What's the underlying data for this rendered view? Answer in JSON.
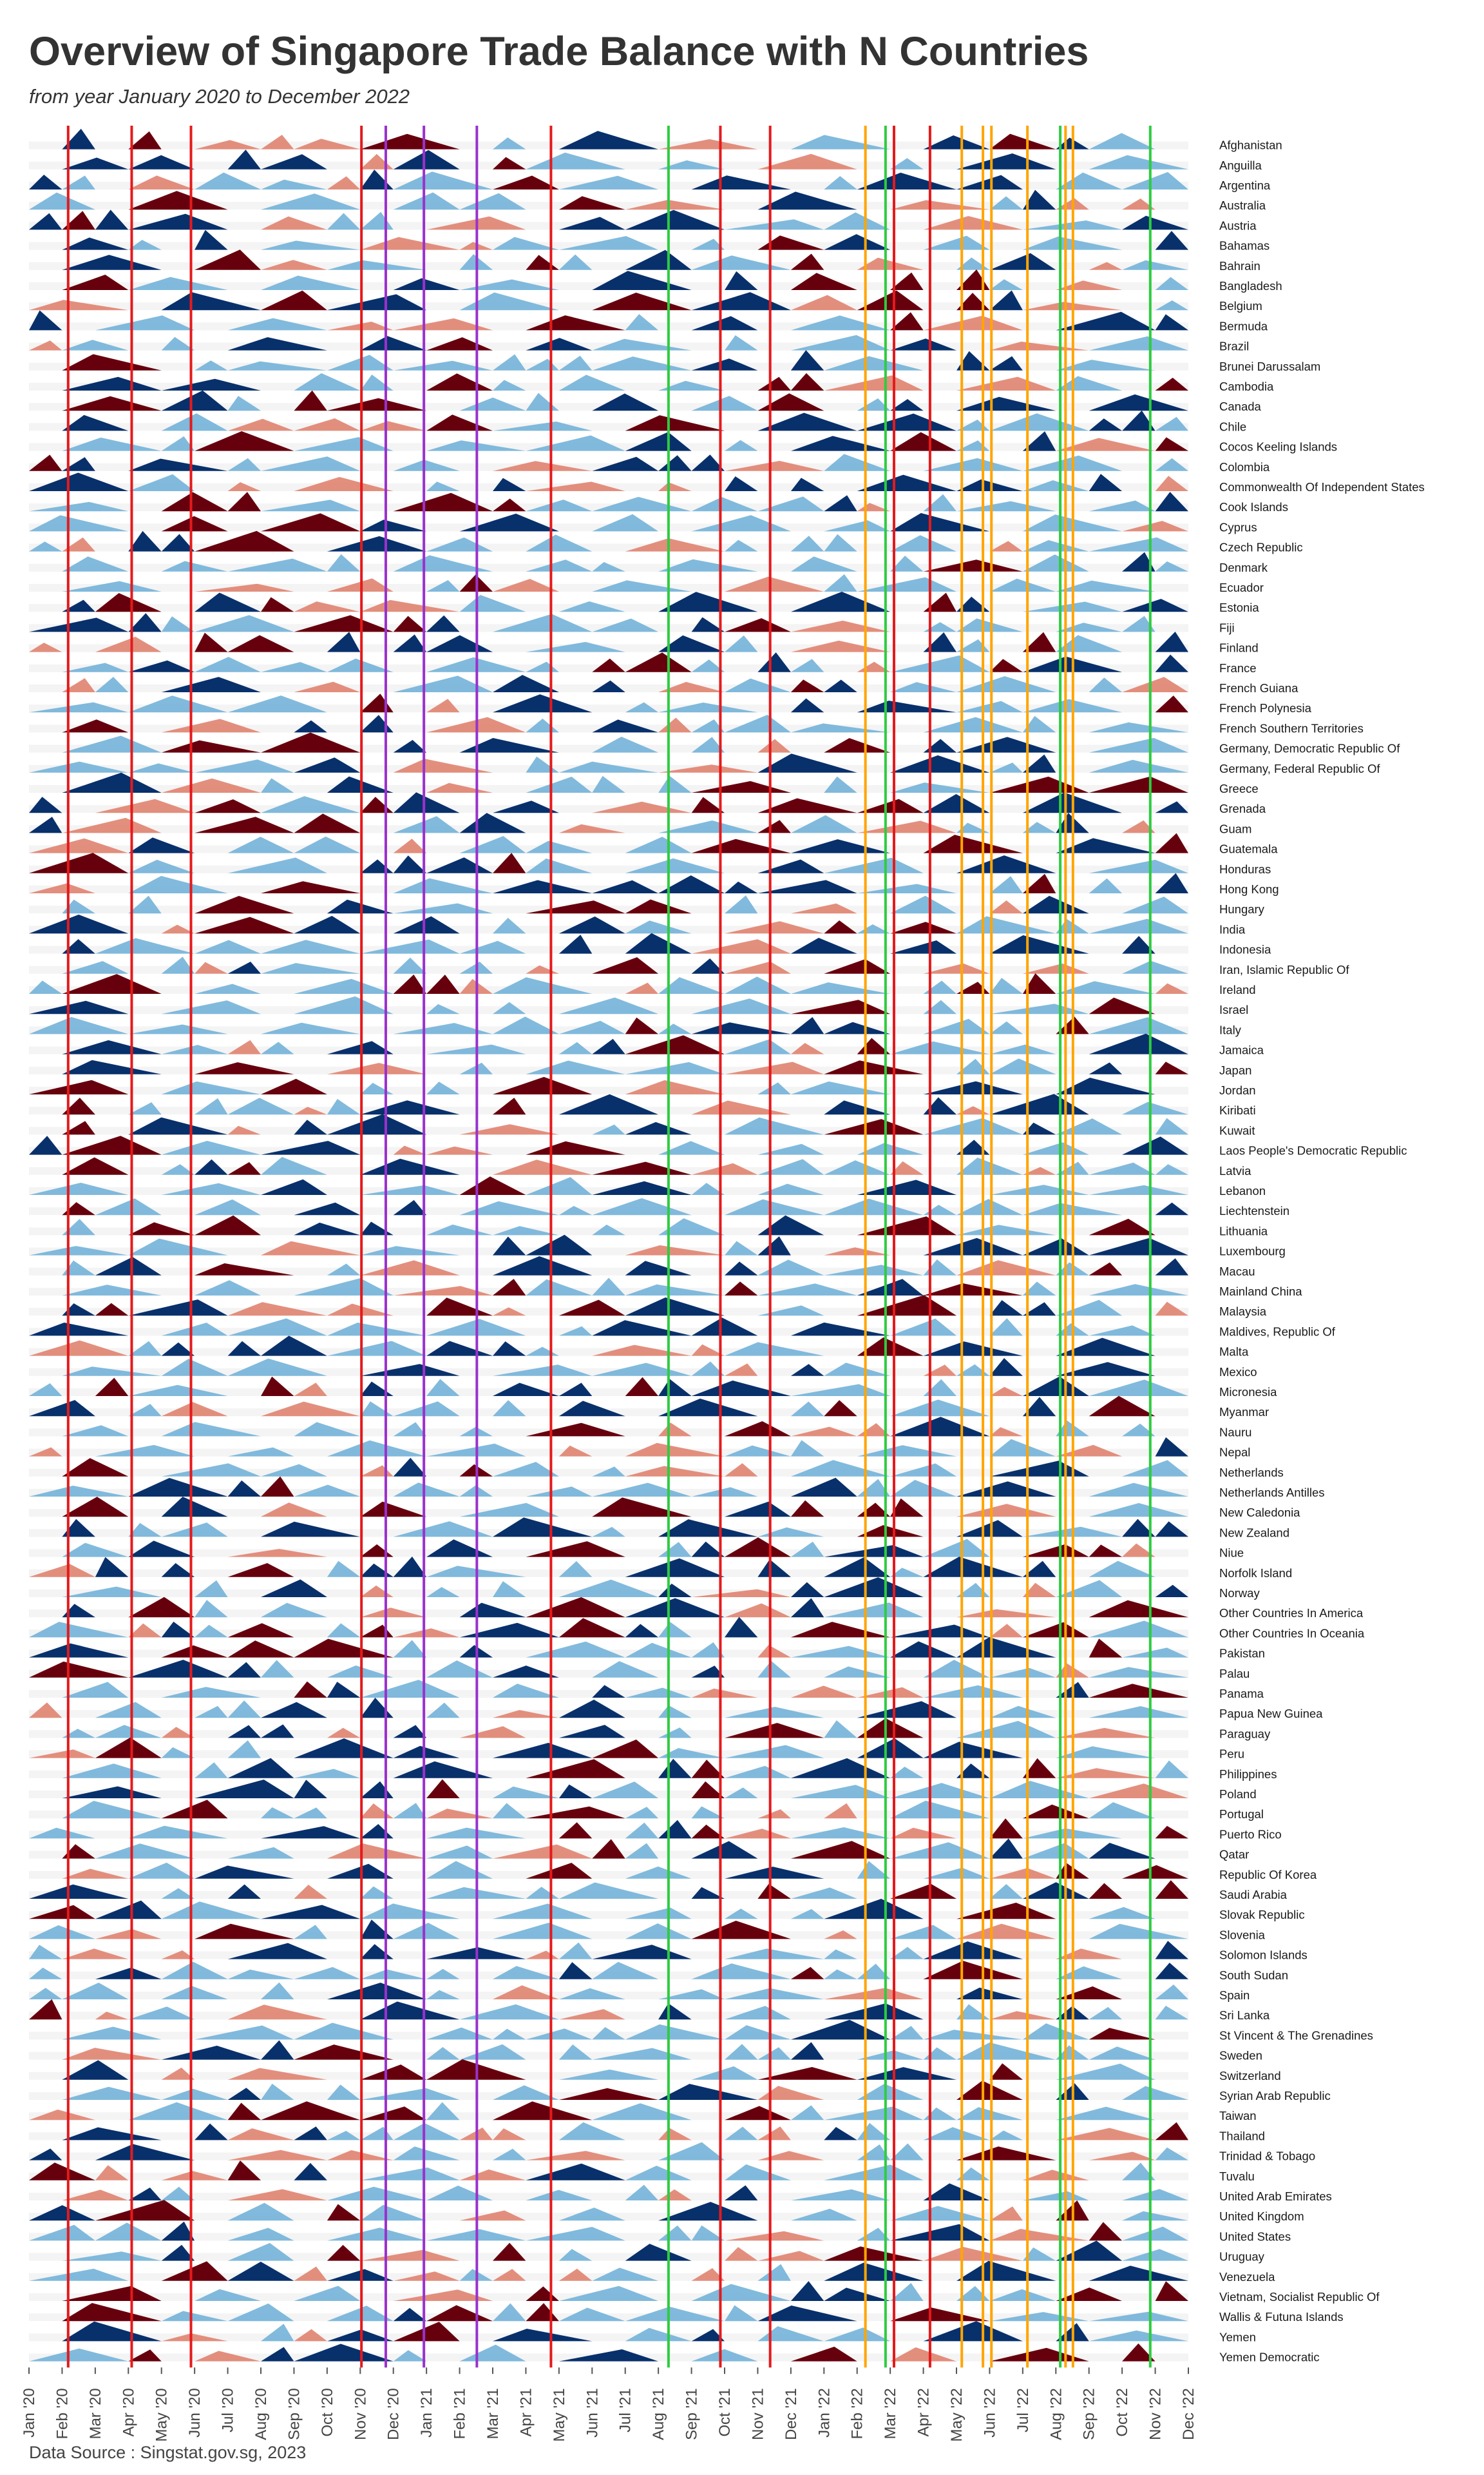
{
  "chart_data": {
    "type": "area",
    "title": "Overview of Singapore Trade Balance with N Countries",
    "subtitle": "from year January 2020 to December 2022",
    "caption": "Data Source : Singstat.gov.sg, 2023",
    "x_ticks": [
      "Jan '20",
      "Feb '20",
      "Mar '20",
      "Apr '20",
      "May '20",
      "Jun '20",
      "Jul '20",
      "Aug '20",
      "Sep '20",
      "Oct '20",
      "Nov '20",
      "Dec '20",
      "Jan '21",
      "Feb '21",
      "Mar '21",
      "Apr '21",
      "May '21",
      "Jun '21",
      "Jul '21",
      "Aug '21",
      "Sep '21",
      "Oct '21",
      "Nov '21",
      "Dec '21",
      "Jan '22",
      "Feb '22",
      "Mar '22",
      "Apr '22",
      "May '22",
      "Jun '22",
      "Jul '22",
      "Aug '22",
      "Sep '22",
      "Oct '22",
      "Nov '22",
      "Dec '22"
    ],
    "countries": [
      "Afghanistan",
      "Anguilla",
      "Argentina",
      "Australia",
      "Austria",
      "Bahamas",
      "Bahrain",
      "Bangladesh",
      "Belgium",
      "Bermuda",
      "Brazil",
      "Brunei Darussalam",
      "Cambodia",
      "Canada",
      "Chile",
      "Cocos Keeling Islands",
      "Colombia",
      "Commonwealth Of Independent States",
      "Cook Islands",
      "Cyprus",
      "Czech Republic",
      "Denmark",
      "Ecuador",
      "Estonia",
      "Fiji",
      "Finland",
      "France",
      "French Guiana",
      "French Polynesia",
      "French Southern Territories",
      "Germany, Democratic Republic Of",
      "Germany, Federal Republic Of",
      "Greece",
      "Grenada",
      "Guam",
      "Guatemala",
      "Honduras",
      "Hong Kong",
      "Hungary",
      "India",
      "Indonesia",
      "Iran, Islamic Republic Of",
      "Ireland",
      "Israel",
      "Italy",
      "Jamaica",
      "Japan",
      "Jordan",
      "Kiribati",
      "Kuwait",
      "Laos People's Democratic Republic",
      "Latvia",
      "Lebanon",
      "Liechtenstein",
      "Lithuania",
      "Luxembourg",
      "Macau",
      "Mainland China",
      "Malaysia",
      "Maldives, Republic Of",
      "Malta",
      "Mexico",
      "Micronesia",
      "Myanmar",
      "Nauru",
      "Nepal",
      "Netherlands",
      "Netherlands Antilles",
      "New Caledonia",
      "New Zealand",
      "Niue",
      "Norfolk Island",
      "Norway",
      "Other Countries In America",
      "Other Countries In Oceania",
      "Pakistan",
      "Palau",
      "Panama",
      "Papua New Guinea",
      "Paraguay",
      "Peru",
      "Philippines",
      "Poland",
      "Portugal",
      "Puerto Rico",
      "Qatar",
      "Republic Of Korea",
      "Saudi Arabia",
      "Slovak Republic",
      "Slovenia",
      "Solomon Islands",
      "South Sudan",
      "Spain",
      "Sri Lanka",
      "St Vincent & The Grenadines",
      "Sweden",
      "Switzerland",
      "Syrian Arab Republic",
      "Taiwan",
      "Thailand",
      "Trinidad & Tobago",
      "Tuvalu",
      "United Arab Emirates",
      "United Kingdom",
      "United States",
      "Uruguay",
      "Venezuela",
      "Vietnam, Socialist Republic Of",
      "Wallis & Futuna Islands",
      "Yemen",
      "Yemen Democratic"
    ],
    "xlim": [
      "2020-01-01",
      "2022-12-31"
    ],
    "event_lines": [
      {
        "date": "2020-02-07",
        "color": "#e41a1c"
      },
      {
        "date": "2020-04-07",
        "color": "#e41a1c"
      },
      {
        "date": "2020-06-02",
        "color": "#e41a1c"
      },
      {
        "date": "2020-11-10",
        "color": "#e41a1c"
      },
      {
        "date": "2020-12-03",
        "color": "#9932cc"
      },
      {
        "date": "2021-01-08",
        "color": "#9932cc"
      },
      {
        "date": "2021-02-27",
        "color": "#9932cc"
      },
      {
        "date": "2021-05-08",
        "color": "#e41a1c"
      },
      {
        "date": "2021-08-27",
        "color": "#2ecc40"
      },
      {
        "date": "2021-10-15",
        "color": "#e41a1c"
      },
      {
        "date": "2021-12-01",
        "color": "#e41a1c"
      },
      {
        "date": "2022-03-01",
        "color": "#ffa500"
      },
      {
        "date": "2022-03-20",
        "color": "#2ecc40"
      },
      {
        "date": "2022-03-28",
        "color": "#e41a1c"
      },
      {
        "date": "2022-05-01",
        "color": "#e41a1c"
      },
      {
        "date": "2022-05-31",
        "color": "#ffa500"
      },
      {
        "date": "2022-06-20",
        "color": "#ffa500"
      },
      {
        "date": "2022-06-28",
        "color": "#ffa500"
      },
      {
        "date": "2022-08-01",
        "color": "#ffa500"
      },
      {
        "date": "2022-09-01",
        "color": "#2ecc40"
      },
      {
        "date": "2022-09-06",
        "color": "#ffa500"
      },
      {
        "date": "2022-09-13",
        "color": "#ffa500"
      },
      {
        "date": "2022-11-25",
        "color": "#2ecc40"
      }
    ],
    "fill_colors": {
      "surplus": "#6baed6",
      "large_surplus": "#08306b",
      "deficit": "#de7b67",
      "large_deficit": "#67000d"
    }
  }
}
